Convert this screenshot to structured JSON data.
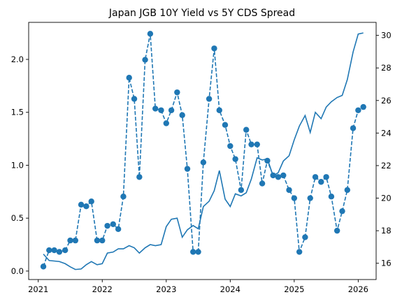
{
  "chart_data": {
    "type": "line",
    "title": "Japan JGB 10Y Yield vs 5Y CDS Spread",
    "xlabel": "",
    "ylabel_left": "",
    "ylabel_right": "",
    "x_ticks": [
      "2021",
      "2022",
      "2023",
      "2024",
      "2025",
      "2026"
    ],
    "y_left_ticks": [
      "0.0",
      "0.5",
      "1.0",
      "1.5",
      "2.0"
    ],
    "y_right_ticks": [
      "16",
      "18",
      "20",
      "22",
      "24",
      "26",
      "28",
      "30"
    ],
    "xlim": [
      2020.85,
      2026.28
    ],
    "ylim_left": [
      -0.08,
      2.35
    ],
    "ylim_right": [
      15.0,
      30.8
    ],
    "grid": false,
    "legend": "none",
    "color": "#1f77b4",
    "series": [
      {
        "axis": "left",
        "style": "solid",
        "marker": "none",
        "points": [
          [
            2021.08,
            0.16
          ],
          [
            2021.17,
            0.1
          ],
          [
            2021.25,
            0.095
          ],
          [
            2021.33,
            0.09
          ],
          [
            2021.42,
            0.07
          ],
          [
            2021.5,
            0.04
          ],
          [
            2021.58,
            0.015
          ],
          [
            2021.67,
            0.02
          ],
          [
            2021.75,
            0.06
          ],
          [
            2021.83,
            0.09
          ],
          [
            2021.92,
            0.06
          ],
          [
            2022.0,
            0.07
          ],
          [
            2022.08,
            0.17
          ],
          [
            2022.17,
            0.18
          ],
          [
            2022.25,
            0.21
          ],
          [
            2022.33,
            0.21
          ],
          [
            2022.42,
            0.24
          ],
          [
            2022.5,
            0.22
          ],
          [
            2022.58,
            0.17
          ],
          [
            2022.67,
            0.22
          ],
          [
            2022.75,
            0.25
          ],
          [
            2022.83,
            0.24
          ],
          [
            2022.92,
            0.25
          ],
          [
            2023.0,
            0.42
          ],
          [
            2023.08,
            0.49
          ],
          [
            2023.17,
            0.5
          ],
          [
            2023.25,
            0.32
          ],
          [
            2023.33,
            0.39
          ],
          [
            2023.42,
            0.43
          ],
          [
            2023.5,
            0.4
          ],
          [
            2023.58,
            0.61
          ],
          [
            2023.67,
            0.66
          ],
          [
            2023.75,
            0.76
          ],
          [
            2023.83,
            0.95
          ],
          [
            2023.92,
            0.68
          ],
          [
            2024.0,
            0.61
          ],
          [
            2024.08,
            0.73
          ],
          [
            2024.17,
            0.71
          ],
          [
            2024.25,
            0.74
          ],
          [
            2024.33,
            0.87
          ],
          [
            2024.42,
            1.07
          ],
          [
            2024.5,
            1.05
          ],
          [
            2024.58,
            1.06
          ],
          [
            2024.67,
            0.9
          ],
          [
            2024.75,
            0.93
          ],
          [
            2024.83,
            1.04
          ],
          [
            2024.92,
            1.09
          ],
          [
            2025.0,
            1.24
          ],
          [
            2025.08,
            1.37
          ],
          [
            2025.17,
            1.47
          ],
          [
            2025.25,
            1.31
          ],
          [
            2025.33,
            1.5
          ],
          [
            2025.42,
            1.44
          ],
          [
            2025.5,
            1.55
          ],
          [
            2025.58,
            1.6
          ],
          [
            2025.67,
            1.64
          ],
          [
            2025.75,
            1.66
          ],
          [
            2025.83,
            1.81
          ],
          [
            2025.92,
            2.07
          ],
          [
            2026.0,
            2.24
          ],
          [
            2026.08,
            2.25
          ]
        ]
      },
      {
        "axis": "right",
        "style": "dashed",
        "marker": "circle",
        "points": [
          [
            2021.08,
            15.8
          ],
          [
            2021.17,
            16.8
          ],
          [
            2021.25,
            16.8
          ],
          [
            2021.33,
            16.7
          ],
          [
            2021.42,
            16.8
          ],
          [
            2021.5,
            17.4
          ],
          [
            2021.58,
            17.4
          ],
          [
            2021.67,
            19.6
          ],
          [
            2021.75,
            19.5
          ],
          [
            2021.83,
            19.8
          ],
          [
            2021.92,
            17.4
          ],
          [
            2022.0,
            17.4
          ],
          [
            2022.08,
            18.3
          ],
          [
            2022.17,
            18.4
          ],
          [
            2022.25,
            18.1
          ],
          [
            2022.33,
            20.1
          ],
          [
            2022.42,
            27.4
          ],
          [
            2022.5,
            26.1
          ],
          [
            2022.58,
            21.3
          ],
          [
            2022.67,
            28.5
          ],
          [
            2022.75,
            30.1
          ],
          [
            2022.83,
            25.5
          ],
          [
            2022.92,
            25.4
          ],
          [
            2023.0,
            24.6
          ],
          [
            2023.08,
            25.4
          ],
          [
            2023.17,
            26.5
          ],
          [
            2023.25,
            25.1
          ],
          [
            2023.33,
            21.8
          ],
          [
            2023.42,
            16.7
          ],
          [
            2023.5,
            16.7
          ],
          [
            2023.58,
            22.2
          ],
          [
            2023.67,
            26.1
          ],
          [
            2023.75,
            29.2
          ],
          [
            2023.83,
            25.4
          ],
          [
            2023.92,
            24.5
          ],
          [
            2024.0,
            23.2
          ],
          [
            2024.08,
            22.4
          ],
          [
            2024.17,
            20.5
          ],
          [
            2024.25,
            24.2
          ],
          [
            2024.33,
            23.3
          ],
          [
            2024.42,
            23.3
          ],
          [
            2024.5,
            20.9
          ],
          [
            2024.58,
            22.3
          ],
          [
            2024.67,
            21.4
          ],
          [
            2024.75,
            21.3
          ],
          [
            2024.83,
            21.4
          ],
          [
            2024.92,
            20.5
          ],
          [
            2025.0,
            20.0
          ],
          [
            2025.08,
            16.7
          ],
          [
            2025.17,
            17.6
          ],
          [
            2025.25,
            20.0
          ],
          [
            2025.33,
            21.3
          ],
          [
            2025.42,
            21.0
          ],
          [
            2025.5,
            21.3
          ],
          [
            2025.58,
            20.1
          ],
          [
            2025.67,
            18.0
          ],
          [
            2025.75,
            19.2
          ],
          [
            2025.83,
            20.5
          ],
          [
            2025.92,
            24.3
          ],
          [
            2026.0,
            25.4
          ],
          [
            2026.08,
            25.6
          ]
        ]
      }
    ]
  }
}
